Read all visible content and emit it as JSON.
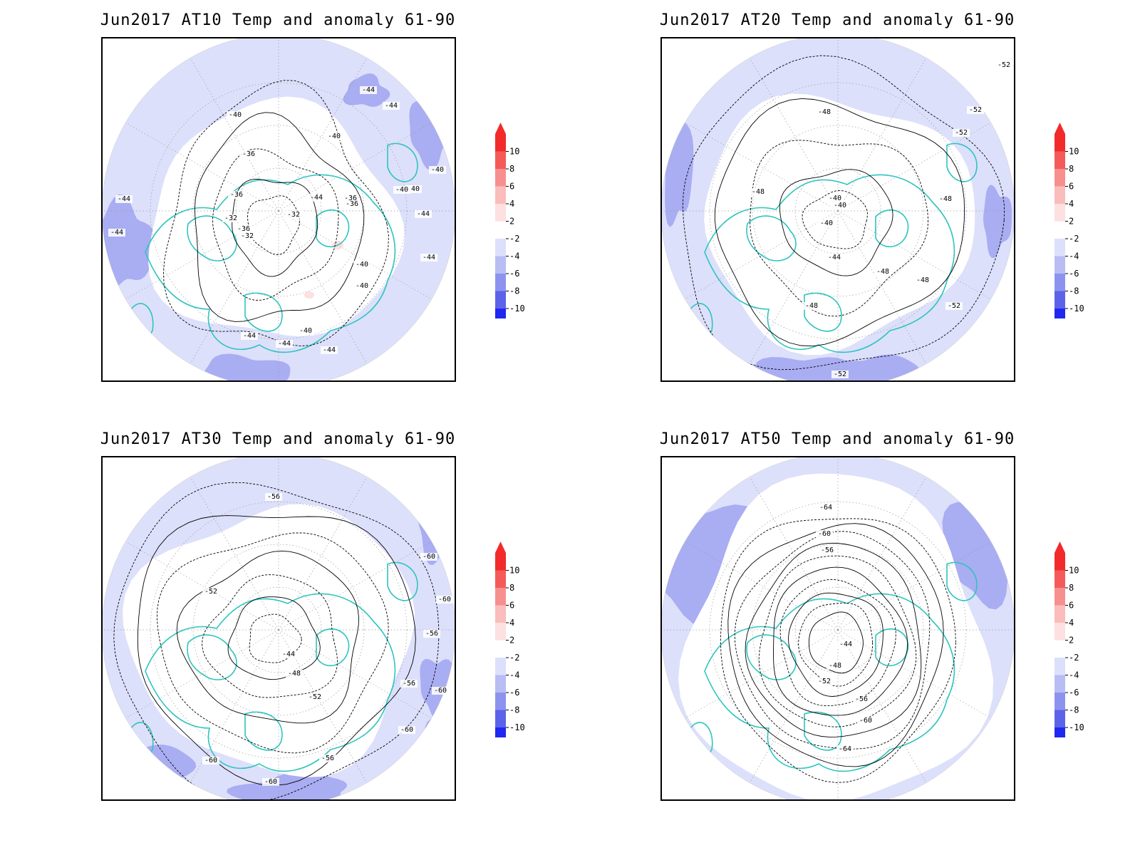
{
  "colors": {
    "anomaly_light": "#dde0fb",
    "anomaly_mid": "#a9adf2",
    "anomaly_dark": "#7d82ea",
    "anomaly_positive_light": "#fde0e0",
    "coastline": "#2ec4be",
    "contour": "#000000",
    "background": "#ffffff"
  },
  "colorbar": {
    "levels": [
      "10",
      "8",
      "6",
      "4",
      "2",
      "-2",
      "-4",
      "-6",
      "-8",
      "-10"
    ],
    "colors": [
      "#f22a2a",
      "#f55a5a",
      "#f78f8f",
      "#fbbcbc",
      "#fde0e0",
      "#ffffff",
      "#dde0fb",
      "#b8bdf4",
      "#8c93ee",
      "#5c63e8",
      "#1e28f0"
    ]
  },
  "panels": [
    {
      "title": "Jun2017 AT10 Temp and anomaly 61-90",
      "contour_labels": [
        "-44",
        "-44",
        "-40",
        "-40",
        "-36",
        "-36",
        "-36",
        "-32",
        "-32",
        "-32",
        "-36",
        "-40",
        "-40",
        "-40",
        "-40",
        "-44",
        "-44",
        "-44",
        "-44",
        "-44",
        "-40",
        "-36",
        "-44",
        "-44",
        "-40",
        "-44"
      ]
    },
    {
      "title": "Jun2017 AT20 Temp and anomaly 61-90",
      "contour_labels": [
        "-52",
        "-48",
        "-52",
        "-52",
        "-48",
        "-40",
        "-40",
        "-40",
        "-44",
        "-48",
        "-48",
        "-48",
        "-48",
        "-52",
        "-52"
      ]
    },
    {
      "title": "Jun2017 AT30 Temp and anomaly 61-90",
      "contour_labels": [
        "-56",
        "-60",
        "-52",
        "-60",
        "-56",
        "-44",
        "-48",
        "-52",
        "-56",
        "-60",
        "-60",
        "-56",
        "-60",
        "-60"
      ]
    },
    {
      "title": "Jun2017 AT50 Temp and anomaly 61-90",
      "contour_labels": [
        "-64",
        "-60",
        "-56",
        "-44",
        "-48",
        "-52",
        "-56",
        "-60",
        "-64"
      ]
    }
  ]
}
